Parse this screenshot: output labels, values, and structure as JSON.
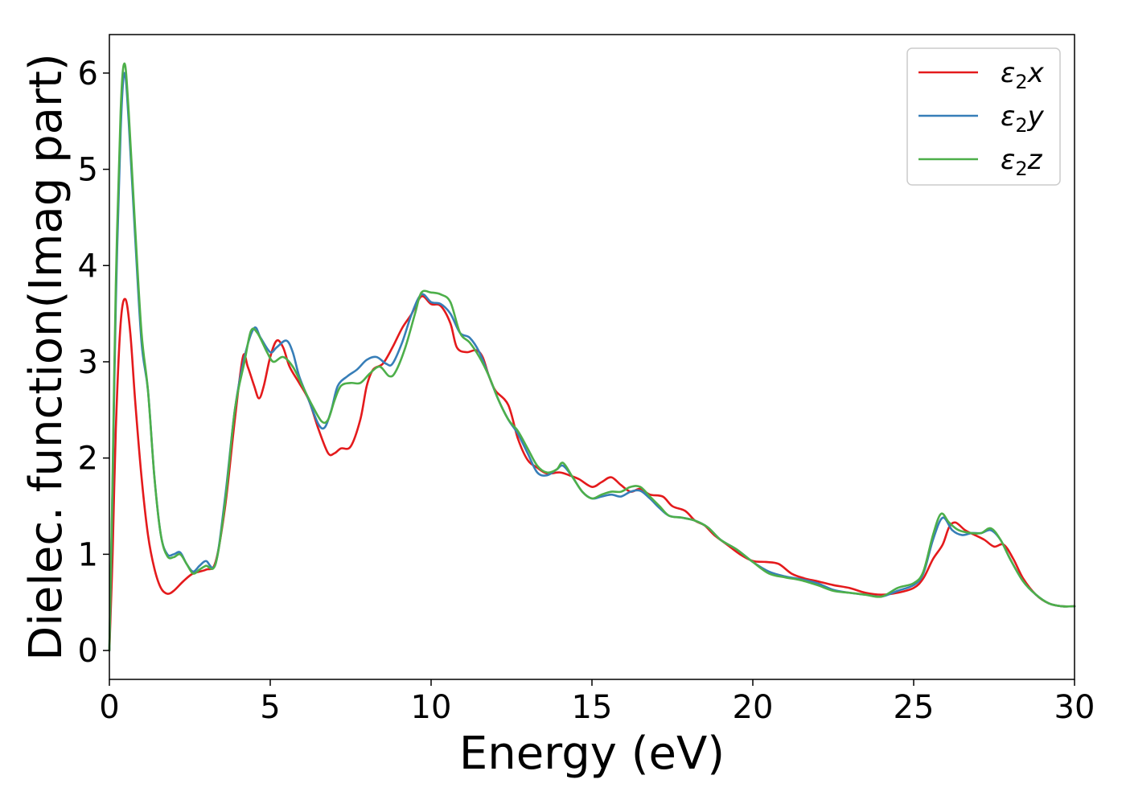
{
  "chart_data": {
    "type": "line",
    "title": "",
    "xlabel": "Energy (eV)",
    "ylabel": "Dielec. function(Imag part)",
    "xlim": [
      0,
      30
    ],
    "ylim": [
      -0.3,
      6.4
    ],
    "xticks": [
      0,
      5,
      10,
      15,
      20,
      25,
      30
    ],
    "yticks": [
      0,
      1,
      2,
      3,
      4,
      5,
      6
    ],
    "grid": false,
    "legend_position": "top-right",
    "series": [
      {
        "name": "ε2x",
        "legend_base": "ε",
        "legend_sub": "2",
        "legend_suffix": "x",
        "color": "#e41a1c",
        "points": [
          [
            0,
            0
          ],
          [
            0.1,
            1.0
          ],
          [
            0.2,
            2.3
          ],
          [
            0.35,
            3.4
          ],
          [
            0.5,
            3.65
          ],
          [
            0.65,
            3.3
          ],
          [
            0.8,
            2.6
          ],
          [
            1.0,
            1.8
          ],
          [
            1.2,
            1.2
          ],
          [
            1.4,
            0.85
          ],
          [
            1.6,
            0.65
          ],
          [
            1.8,
            0.59
          ],
          [
            2.0,
            0.62
          ],
          [
            2.3,
            0.72
          ],
          [
            2.6,
            0.8
          ],
          [
            3.0,
            0.84
          ],
          [
            3.3,
            0.92
          ],
          [
            3.6,
            1.5
          ],
          [
            3.9,
            2.4
          ],
          [
            4.15,
            3.05
          ],
          [
            4.3,
            2.95
          ],
          [
            4.5,
            2.75
          ],
          [
            4.65,
            2.62
          ],
          [
            4.8,
            2.75
          ],
          [
            5.0,
            3.05
          ],
          [
            5.2,
            3.22
          ],
          [
            5.4,
            3.15
          ],
          [
            5.6,
            2.95
          ],
          [
            5.9,
            2.78
          ],
          [
            6.2,
            2.6
          ],
          [
            6.5,
            2.3
          ],
          [
            6.8,
            2.05
          ],
          [
            7.0,
            2.05
          ],
          [
            7.2,
            2.1
          ],
          [
            7.5,
            2.12
          ],
          [
            7.8,
            2.4
          ],
          [
            8.0,
            2.75
          ],
          [
            8.2,
            2.92
          ],
          [
            8.5,
            2.98
          ],
          [
            8.8,
            3.15
          ],
          [
            9.1,
            3.35
          ],
          [
            9.4,
            3.5
          ],
          [
            9.7,
            3.68
          ],
          [
            10.0,
            3.6
          ],
          [
            10.3,
            3.58
          ],
          [
            10.6,
            3.4
          ],
          [
            10.8,
            3.15
          ],
          [
            11.1,
            3.1
          ],
          [
            11.4,
            3.12
          ],
          [
            11.6,
            3.05
          ],
          [
            11.8,
            2.85
          ],
          [
            12.0,
            2.7
          ],
          [
            12.4,
            2.55
          ],
          [
            12.7,
            2.2
          ],
          [
            13.0,
            1.98
          ],
          [
            13.3,
            1.9
          ],
          [
            13.6,
            1.84
          ],
          [
            14.0,
            1.85
          ],
          [
            14.3,
            1.82
          ],
          [
            14.6,
            1.78
          ],
          [
            15.0,
            1.7
          ],
          [
            15.3,
            1.75
          ],
          [
            15.6,
            1.8
          ],
          [
            15.9,
            1.72
          ],
          [
            16.2,
            1.65
          ],
          [
            16.5,
            1.68
          ],
          [
            16.8,
            1.62
          ],
          [
            17.2,
            1.6
          ],
          [
            17.5,
            1.5
          ],
          [
            17.9,
            1.45
          ],
          [
            18.2,
            1.35
          ],
          [
            18.5,
            1.3
          ],
          [
            18.8,
            1.2
          ],
          [
            19.2,
            1.1
          ],
          [
            19.6,
            1.0
          ],
          [
            20.0,
            0.93
          ],
          [
            20.4,
            0.92
          ],
          [
            20.8,
            0.9
          ],
          [
            21.2,
            0.8
          ],
          [
            21.6,
            0.75
          ],
          [
            22.0,
            0.72
          ],
          [
            22.5,
            0.68
          ],
          [
            23.0,
            0.65
          ],
          [
            23.5,
            0.6
          ],
          [
            24.0,
            0.58
          ],
          [
            24.5,
            0.6
          ],
          [
            25.0,
            0.65
          ],
          [
            25.3,
            0.75
          ],
          [
            25.6,
            0.95
          ],
          [
            25.9,
            1.1
          ],
          [
            26.1,
            1.28
          ],
          [
            26.3,
            1.33
          ],
          [
            26.6,
            1.25
          ],
          [
            26.9,
            1.2
          ],
          [
            27.2,
            1.15
          ],
          [
            27.5,
            1.08
          ],
          [
            27.8,
            1.1
          ],
          [
            28.1,
            0.95
          ],
          [
            28.4,
            0.75
          ],
          [
            28.8,
            0.58
          ],
          [
            29.2,
            0.49
          ],
          [
            29.6,
            0.46
          ],
          [
            30.0,
            0.46
          ]
        ]
      },
      {
        "name": "ε2y",
        "legend_base": "ε",
        "legend_sub": "2",
        "legend_suffix": "y",
        "color": "#377eb8",
        "points": [
          [
            0,
            0
          ],
          [
            0.1,
            1.7
          ],
          [
            0.2,
            3.6
          ],
          [
            0.35,
            5.4
          ],
          [
            0.47,
            6.0
          ],
          [
            0.6,
            5.5
          ],
          [
            0.8,
            4.3
          ],
          [
            1.0,
            3.2
          ],
          [
            1.2,
            2.7
          ],
          [
            1.4,
            1.8
          ],
          [
            1.6,
            1.2
          ],
          [
            1.8,
            1.0
          ],
          [
            2.0,
            1.0
          ],
          [
            2.2,
            1.02
          ],
          [
            2.4,
            0.9
          ],
          [
            2.6,
            0.82
          ],
          [
            2.8,
            0.88
          ],
          [
            3.0,
            0.93
          ],
          [
            3.3,
            0.9
          ],
          [
            3.6,
            1.6
          ],
          [
            3.9,
            2.5
          ],
          [
            4.2,
            3.05
          ],
          [
            4.5,
            3.35
          ],
          [
            4.7,
            3.25
          ],
          [
            5.0,
            3.1
          ],
          [
            5.2,
            3.15
          ],
          [
            5.5,
            3.22
          ],
          [
            5.7,
            3.1
          ],
          [
            5.9,
            2.85
          ],
          [
            6.2,
            2.6
          ],
          [
            6.5,
            2.35
          ],
          [
            6.7,
            2.32
          ],
          [
            6.9,
            2.5
          ],
          [
            7.1,
            2.75
          ],
          [
            7.4,
            2.85
          ],
          [
            7.7,
            2.92
          ],
          [
            8.0,
            3.02
          ],
          [
            8.3,
            3.05
          ],
          [
            8.6,
            2.98
          ],
          [
            8.8,
            2.98
          ],
          [
            9.1,
            3.2
          ],
          [
            9.4,
            3.5
          ],
          [
            9.7,
            3.7
          ],
          [
            10.0,
            3.62
          ],
          [
            10.3,
            3.6
          ],
          [
            10.6,
            3.5
          ],
          [
            10.9,
            3.3
          ],
          [
            11.2,
            3.25
          ],
          [
            11.5,
            3.1
          ],
          [
            11.8,
            2.85
          ],
          [
            12.1,
            2.6
          ],
          [
            12.4,
            2.4
          ],
          [
            12.7,
            2.25
          ],
          [
            13.0,
            2.05
          ],
          [
            13.3,
            1.85
          ],
          [
            13.6,
            1.82
          ],
          [
            13.9,
            1.88
          ],
          [
            14.1,
            1.92
          ],
          [
            14.4,
            1.8
          ],
          [
            14.7,
            1.65
          ],
          [
            15.0,
            1.58
          ],
          [
            15.3,
            1.6
          ],
          [
            15.6,
            1.62
          ],
          [
            15.9,
            1.6
          ],
          [
            16.2,
            1.65
          ],
          [
            16.5,
            1.66
          ],
          [
            16.8,
            1.58
          ],
          [
            17.1,
            1.48
          ],
          [
            17.4,
            1.4
          ],
          [
            17.8,
            1.38
          ],
          [
            18.2,
            1.35
          ],
          [
            18.6,
            1.28
          ],
          [
            19.0,
            1.15
          ],
          [
            19.5,
            1.05
          ],
          [
            20.0,
            0.92
          ],
          [
            20.5,
            0.82
          ],
          [
            21.0,
            0.77
          ],
          [
            21.5,
            0.74
          ],
          [
            22.0,
            0.7
          ],
          [
            22.5,
            0.63
          ],
          [
            23.0,
            0.6
          ],
          [
            23.5,
            0.58
          ],
          [
            24.0,
            0.56
          ],
          [
            24.5,
            0.62
          ],
          [
            25.0,
            0.68
          ],
          [
            25.3,
            0.8
          ],
          [
            25.6,
            1.15
          ],
          [
            25.9,
            1.38
          ],
          [
            26.2,
            1.25
          ],
          [
            26.5,
            1.2
          ],
          [
            26.8,
            1.22
          ],
          [
            27.1,
            1.22
          ],
          [
            27.4,
            1.25
          ],
          [
            27.7,
            1.15
          ],
          [
            28.0,
            0.95
          ],
          [
            28.4,
            0.72
          ],
          [
            28.8,
            0.58
          ],
          [
            29.2,
            0.49
          ],
          [
            29.6,
            0.46
          ],
          [
            30.0,
            0.46
          ]
        ]
      },
      {
        "name": "ε2z",
        "legend_base": "ε",
        "legend_sub": "2",
        "legend_suffix": "z",
        "color": "#4daf4a",
        "points": [
          [
            0,
            0
          ],
          [
            0.1,
            1.8
          ],
          [
            0.2,
            3.8
          ],
          [
            0.35,
            5.6
          ],
          [
            0.47,
            6.1
          ],
          [
            0.6,
            5.6
          ],
          [
            0.8,
            4.4
          ],
          [
            1.0,
            3.3
          ],
          [
            1.2,
            2.7
          ],
          [
            1.4,
            1.8
          ],
          [
            1.6,
            1.2
          ],
          [
            1.8,
            0.98
          ],
          [
            2.0,
            0.97
          ],
          [
            2.2,
            1.0
          ],
          [
            2.4,
            0.9
          ],
          [
            2.6,
            0.8
          ],
          [
            2.8,
            0.84
          ],
          [
            3.0,
            0.88
          ],
          [
            3.3,
            0.9
          ],
          [
            3.6,
            1.55
          ],
          [
            3.9,
            2.5
          ],
          [
            4.2,
            3.0
          ],
          [
            4.4,
            3.32
          ],
          [
            4.6,
            3.3
          ],
          [
            4.9,
            3.1
          ],
          [
            5.1,
            3.0
          ],
          [
            5.4,
            3.05
          ],
          [
            5.7,
            2.95
          ],
          [
            6.0,
            2.75
          ],
          [
            6.3,
            2.55
          ],
          [
            6.6,
            2.38
          ],
          [
            6.8,
            2.4
          ],
          [
            7.0,
            2.6
          ],
          [
            7.2,
            2.75
          ],
          [
            7.5,
            2.78
          ],
          [
            7.8,
            2.78
          ],
          [
            8.1,
            2.88
          ],
          [
            8.4,
            2.95
          ],
          [
            8.7,
            2.85
          ],
          [
            8.9,
            2.9
          ],
          [
            9.2,
            3.15
          ],
          [
            9.5,
            3.5
          ],
          [
            9.7,
            3.72
          ],
          [
            10.0,
            3.72
          ],
          [
            10.3,
            3.7
          ],
          [
            10.6,
            3.62
          ],
          [
            10.9,
            3.3
          ],
          [
            11.2,
            3.2
          ],
          [
            11.5,
            3.05
          ],
          [
            11.8,
            2.85
          ],
          [
            12.1,
            2.6
          ],
          [
            12.4,
            2.4
          ],
          [
            12.7,
            2.28
          ],
          [
            13.0,
            2.1
          ],
          [
            13.3,
            1.92
          ],
          [
            13.6,
            1.85
          ],
          [
            13.9,
            1.88
          ],
          [
            14.1,
            1.95
          ],
          [
            14.4,
            1.8
          ],
          [
            14.7,
            1.65
          ],
          [
            15.0,
            1.58
          ],
          [
            15.3,
            1.62
          ],
          [
            15.6,
            1.65
          ],
          [
            15.9,
            1.65
          ],
          [
            16.2,
            1.7
          ],
          [
            16.5,
            1.7
          ],
          [
            16.8,
            1.6
          ],
          [
            17.1,
            1.5
          ],
          [
            17.4,
            1.4
          ],
          [
            17.8,
            1.38
          ],
          [
            18.2,
            1.35
          ],
          [
            18.6,
            1.28
          ],
          [
            19.0,
            1.15
          ],
          [
            19.5,
            1.05
          ],
          [
            20.0,
            0.92
          ],
          [
            20.5,
            0.8
          ],
          [
            21.0,
            0.76
          ],
          [
            21.5,
            0.73
          ],
          [
            22.0,
            0.68
          ],
          [
            22.5,
            0.62
          ],
          [
            23.0,
            0.6
          ],
          [
            23.5,
            0.58
          ],
          [
            24.0,
            0.56
          ],
          [
            24.5,
            0.65
          ],
          [
            25.0,
            0.7
          ],
          [
            25.3,
            0.82
          ],
          [
            25.6,
            1.2
          ],
          [
            25.85,
            1.42
          ],
          [
            26.1,
            1.33
          ],
          [
            26.4,
            1.25
          ],
          [
            26.8,
            1.22
          ],
          [
            27.1,
            1.22
          ],
          [
            27.4,
            1.27
          ],
          [
            27.7,
            1.15
          ],
          [
            28.0,
            0.95
          ],
          [
            28.4,
            0.72
          ],
          [
            28.8,
            0.58
          ],
          [
            29.2,
            0.49
          ],
          [
            29.6,
            0.46
          ],
          [
            30.0,
            0.46
          ]
        ]
      }
    ]
  }
}
